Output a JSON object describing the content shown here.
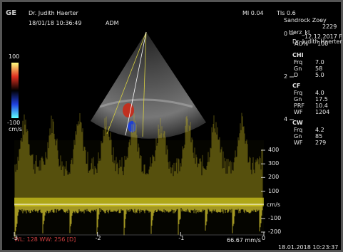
{
  "header": {
    "probe": "GE",
    "physician": "Dr. Judith Haerter",
    "datetime": "18/01/18 10:36:49",
    "mode": "ADM",
    "mi": "MI 0.04",
    "tis": "TIs 0.6"
  },
  "patient": {
    "name": "Sandrock Zoey",
    "id": "2229",
    "exam": "Herz_kl",
    "birth": "12.12.2017 F",
    "physician": "Dr. Judith Haerter"
  },
  "color_bar": {
    "max": "100",
    "min": "-100",
    "unit": "cm/s"
  },
  "depth_ticks": [
    0,
    2,
    4
  ],
  "output": {
    "label": "AO%",
    "value": "100"
  },
  "groups": [
    {
      "title": "CHI",
      "rows": [
        [
          "Frq",
          "7.0"
        ],
        [
          "Gn",
          "58"
        ],
        [
          "D",
          "5.0"
        ]
      ]
    },
    {
      "title": "CF",
      "rows": [
        [
          "Frq",
          "4.0"
        ],
        [
          "Gn",
          "17.5"
        ],
        [
          "PRF",
          "10.4"
        ],
        [
          "WF",
          "1204"
        ]
      ]
    },
    {
      "title": "CW",
      "rows": [
        [
          "Frq",
          "4.2"
        ],
        [
          "Gn",
          "85"
        ],
        [
          "WF",
          "279"
        ]
      ]
    }
  ],
  "doppler": {
    "unit": "cm/s",
    "velocity_ticks": [
      400,
      300,
      200,
      100,
      -100,
      -200
    ],
    "time_ticks": [
      -3,
      -2,
      -1,
      0
    ]
  },
  "footer": {
    "window": "WL: 128 WW: 256 [D]",
    "sweep": "66.67 mm/s",
    "timestamp": "18.01.2018 10:23:37"
  }
}
